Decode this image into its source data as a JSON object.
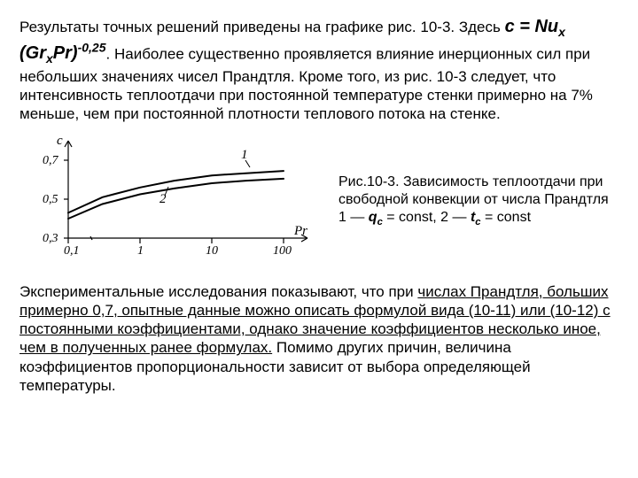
{
  "para1": {
    "t1": "Результаты точных решений приведены на графике рис. 10-3. Здесь ",
    "formula_prefix": "c = Nu",
    "formula_sub1": "x",
    "formula_mid": " (Gr",
    "formula_sub2": "x",
    "formula_pr": "Pr)",
    "formula_exp": "-0,25",
    "t2": ". Наиболее существенно проявляется влияние инерционных сил при небольших значениях чисел Прандтля. Кроме того, из рис. 10-3 следует, что интенсивность теплоотдачи при постоянной температуре стенки примерно на 7% меньше, чем при постоянной плотности теплового потока на стенке."
  },
  "chart": {
    "y_label": "c",
    "x_label": "Pr",
    "y_ticks": [
      "0,7",
      "0,5",
      "0,3"
    ],
    "x_ticks": [
      "0,1",
      "1",
      "10",
      "100"
    ],
    "curve1_label": "1",
    "curve2_label": "2",
    "curve1": {
      "points": [
        [
          0.1,
          0.43
        ],
        [
          0.3,
          0.51
        ],
        [
          1,
          0.56
        ],
        [
          3,
          0.595
        ],
        [
          10,
          0.622
        ],
        [
          30,
          0.633
        ],
        [
          100,
          0.645
        ]
      ],
      "color": "#000000",
      "width": 2
    },
    "curve2": {
      "points": [
        [
          0.1,
          0.4
        ],
        [
          0.3,
          0.475
        ],
        [
          1,
          0.525
        ],
        [
          3,
          0.555
        ],
        [
          10,
          0.582
        ],
        [
          30,
          0.595
        ],
        [
          100,
          0.605
        ]
      ],
      "color": "#000000",
      "width": 2
    },
    "axis_color": "#000000",
    "xlim": [
      0.1,
      100
    ],
    "ylim": [
      0.3,
      0.8
    ]
  },
  "caption": {
    "line1": "Рис.10-3. Зависимость теплоотдачи при свободной конвекции от числа Прандтля",
    "line2a": "1 — ",
    "q_var": "q",
    "q_sub": "c",
    "line2b": " = const, 2 — ",
    "t_var": "t",
    "t_sub": "c",
    "line2c": " = const"
  },
  "para2": {
    "t1": "Экспериментальные исследования показывают, что при ",
    "u1": "числах Прандтля, больших примерно 0,7, опытные данные можно описать формулой вида (10-11) или (10-12) с постоянными коэффициентами, однако значение коэффициентов несколько иное, чем в полученных ранее формулах.",
    "t2": " Помимо других причин, величина коэффициентов пропорциональности зависит от выбора определяющей температуры."
  }
}
